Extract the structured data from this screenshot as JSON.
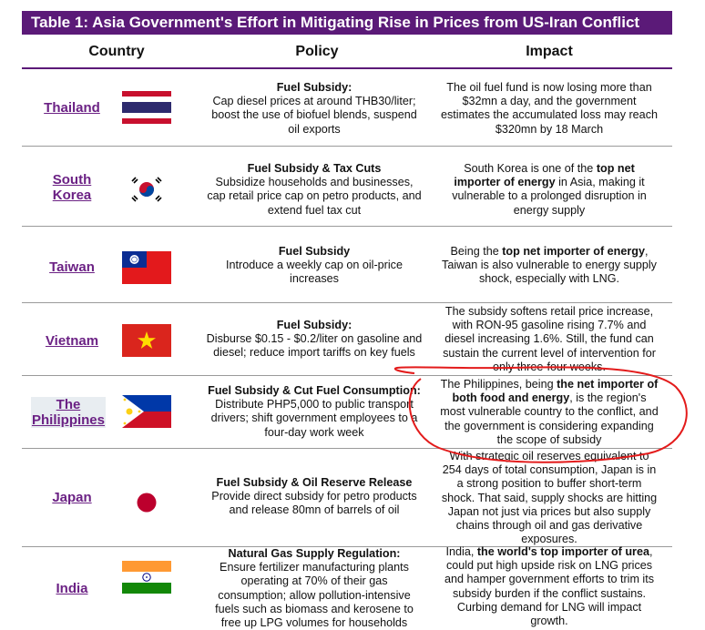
{
  "title": "Table 1: Asia Government's Effort in Mitigating Rise in Prices from US-Iran Conflict",
  "headers": {
    "country": "Country",
    "policy": "Policy",
    "impact": "Impact"
  },
  "rows": [
    {
      "country": [
        "Thailand"
      ],
      "flag": "thailand-flag",
      "policy_title": "Fuel Subsidy:",
      "policy_lines": [
        "Cap diesel prices at around THB30/liter;",
        "boost the use of biofuel blends, suspend",
        "oil exports"
      ],
      "impact_lines": [
        "The oil fuel fund is now losing more than",
        "$32mn a day, and the government",
        "estimates the accumulated loss may reach",
        "$320mn by 18 March"
      ]
    },
    {
      "country": [
        "South",
        "Korea"
      ],
      "flag": "south-korea-flag",
      "policy_title": "Fuel Subsidy & Tax Cuts",
      "policy_lines": [
        "Subsidize households and businesses,",
        "cap retail price cap on petro products, and",
        "extend fuel tax cut"
      ],
      "impact_lines": [
        "South Korea is one of the <b>top net</b>",
        "<b>importer of energy</b> in Asia, making it",
        "vulnerable to a prolonged disruption in",
        "energy supply"
      ]
    },
    {
      "country": [
        "Taiwan"
      ],
      "flag": "taiwan-flag",
      "policy_title": "Fuel Subsidy",
      "policy_lines": [
        "Introduce a weekly cap on oil-price",
        "increases"
      ],
      "impact_lines": [
        "Being the <b>top net importer of energy</b>,",
        "Taiwan is also vulnerable to energy supply",
        "shock, especially with LNG."
      ]
    },
    {
      "country": [
        "Vietnam"
      ],
      "flag": "vietnam-flag",
      "policy_title": "Fuel Subsidy:",
      "policy_lines": [
        "Disburse $0.15 - $0.2/liter on gasoline and",
        "diesel; reduce import tariffs on key fuels"
      ],
      "impact_lines": [
        "The subsidy softens retail price increase,",
        "with RON-95 gasoline rising 7.7% and",
        "diesel increasing 1.6%. Still, the fund can",
        "sustain the current level of intervention for",
        "only three-four weeks."
      ]
    },
    {
      "country": [
        "The",
        "Philippines"
      ],
      "flag": "philippines-flag",
      "policy_title": "Fuel Subsidy & Cut Fuel Consumption:",
      "policy_lines": [
        "Distribute PHP5,000 to public transport",
        "drivers; shift government employees to a",
        "four-day work week"
      ],
      "impact_lines": [
        "The Philippines, being <b>the net importer of</b>",
        "<b>both food and energy</b>, is the region's",
        "most vulnerable country to the conflict, and",
        "the government is considering expanding",
        "the scope of subsidy"
      ]
    },
    {
      "country": [
        "Japan"
      ],
      "flag": "japan-flag",
      "policy_title": "Fuel Subsidy & Oil Reserve Release",
      "policy_lines": [
        "Provide direct subsidy for petro products",
        "and release 80mn of barrels of oil"
      ],
      "impact_lines": [
        "With strategic oil reserves equivalent to",
        "254 days of total consumption, Japan is in",
        "a strong position to buffer short-term",
        "shock. That said, supply shocks are hitting",
        "Japan not just via prices but also supply",
        "chains through oil and gas derivative",
        "exposures."
      ]
    },
    {
      "country": [
        "India"
      ],
      "flag": "india-flag",
      "policy_title": "Natural Gas Supply Regulation:",
      "policy_lines": [
        "Ensure fertilizer manufacturing plants",
        "operating at 70% of their gas",
        "consumption; allow pollution-intensive",
        "fuels such as biomass and kerosene to",
        "free up LPG volumes for households"
      ],
      "impact_lines": [
        "India, <b>the world's top importer of urea</b>,",
        "could put high upside risk on LNG prices",
        "and hamper government efforts to trim its",
        "subsidy burden if the conflict sustains.",
        "Curbing demand for LNG will impact",
        "growth."
      ]
    }
  ]
}
